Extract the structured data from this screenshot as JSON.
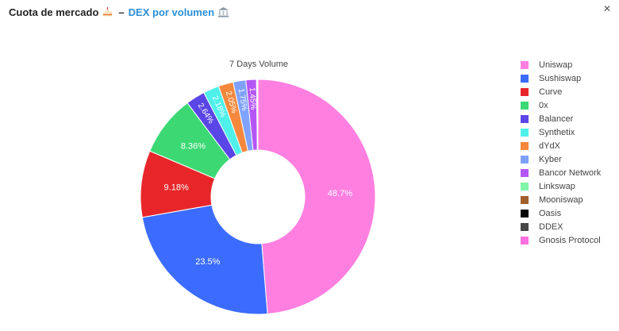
{
  "header": {
    "title": "Cuota de mercado",
    "separator": "–",
    "link_text": "DEX por volumen",
    "title_icon": "cake-icon",
    "link_icon": "bank-icon"
  },
  "close_icon": "close-icon",
  "chart_data": {
    "type": "pie",
    "donut": true,
    "title": "7 Days Volume",
    "legend_position": "right",
    "labels": [
      "Uniswap",
      "Sushiswap",
      "Curve",
      "0x",
      "Balancer",
      "Synthetix",
      "dYdX",
      "Kyber",
      "Bancor Network",
      "Linkswap",
      "Mooniswap",
      "Oasis",
      "DDEX",
      "Gnosis Protocol"
    ],
    "values": [
      48.7,
      23.5,
      9.18,
      8.36,
      2.64,
      2.18,
      2.05,
      1.75,
      1.45,
      0.08,
      0.05,
      0.03,
      0.02,
      0.01
    ],
    "value_labels": [
      "48.7%",
      "23.5%",
      "9.18%",
      "8.36%",
      "2.64%",
      "2.18%",
      "2.05%",
      "1.75%",
      "1.45%",
      "",
      "",
      "",
      "",
      ""
    ],
    "colors": [
      "#ff7fe0",
      "#3b6cff",
      "#e8262a",
      "#3cd874",
      "#5a46e6",
      "#4ff0ea",
      "#f5883c",
      "#7fa2ff",
      "#b455f5",
      "#7ff5a8",
      "#a0602a",
      "#050505",
      "#474747",
      "#ff6fdf"
    ]
  }
}
